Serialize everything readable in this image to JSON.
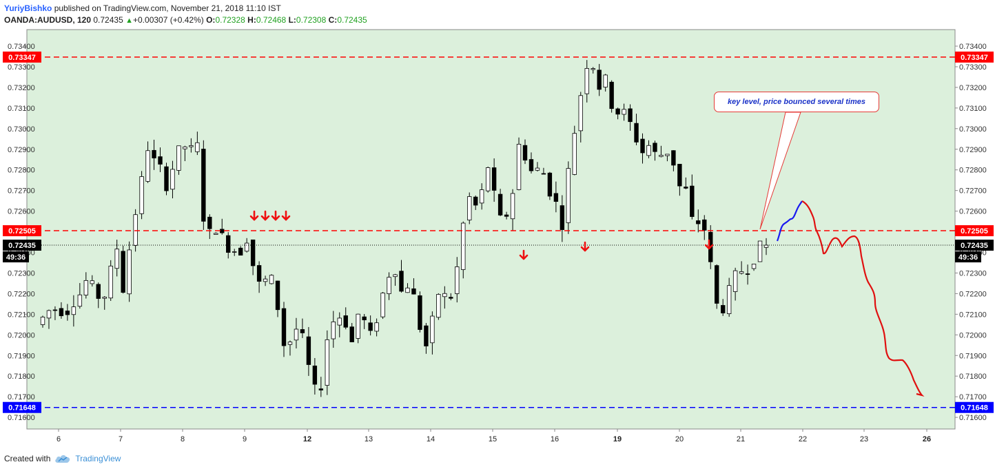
{
  "header": {
    "author": "YuriyBishko",
    "published_text": "published on TradingView.com, November 21, 2018 11:10 IST",
    "symbol": "OANDA:AUDUSD, 120",
    "last": "0.72435",
    "change_icon": "triangle-up-icon",
    "change": "+0.00307 (+0.42%)",
    "o_label": "O:",
    "o_value": "0.72328",
    "h_label": "H:",
    "h_value": "0.72468",
    "l_label": "L:",
    "l_value": "0.72308",
    "c_label": "C:",
    "c_value": "0.72435"
  },
  "footer": {
    "created_with": "Created with",
    "brand": "TradingView",
    "brand_icon": "tradingview-cloud-icon"
  },
  "annotation": {
    "text": "key level, price bounced several times"
  },
  "colors": {
    "background": "#dcf0dc",
    "resistance": "#ff0000",
    "support": "#0000ff",
    "bull_candle": "#ffffff",
    "bear_candle": "#000000",
    "projection_up": "#0000ff",
    "projection_down": "#ff0000"
  },
  "chart_data": {
    "type": "candlestick",
    "y_range": [
      0.7152,
      0.7346
    ],
    "y_ticks": [
      "0.73400",
      "0.73300",
      "0.73200",
      "0.73100",
      "0.73000",
      "0.72900",
      "0.72800",
      "0.72700",
      "0.72600",
      "0.72500",
      "0.72400",
      "0.72300",
      "0.72200",
      "0.72100",
      "0.72000",
      "0.71900",
      "0.71800",
      "0.71700",
      "0.71600"
    ],
    "x_ticks": [
      {
        "label": "6",
        "bold": false
      },
      {
        "label": "7",
        "bold": false
      },
      {
        "label": "8",
        "bold": false
      },
      {
        "label": "9",
        "bold": false
      },
      {
        "label": "12",
        "bold": true
      },
      {
        "label": "13",
        "bold": false
      },
      {
        "label": "14",
        "bold": false
      },
      {
        "label": "15",
        "bold": false
      },
      {
        "label": "16",
        "bold": false
      },
      {
        "label": "19",
        "bold": true
      },
      {
        "label": "20",
        "bold": false
      },
      {
        "label": "21",
        "bold": false
      },
      {
        "label": "22",
        "bold": false
      },
      {
        "label": "23",
        "bold": false
      },
      {
        "label": "26",
        "bold": true
      }
    ],
    "levels": [
      {
        "label": "0.73347",
        "value": 0.73347,
        "color": "#ff0000"
      },
      {
        "label": "0.72505",
        "value": 0.72505,
        "color": "#ff0000"
      },
      {
        "label": "0.71648",
        "value": 0.71648,
        "color": "#0000ff"
      }
    ],
    "current_price": {
      "label": "0.72435",
      "value": 0.72435,
      "countdown": "49:36"
    },
    "waypoints": [
      [
        0,
        0.7205
      ],
      [
        4,
        0.7213
      ],
      [
        8,
        0.721
      ],
      [
        12,
        0.722
      ],
      [
        14,
        0.7228
      ],
      [
        16,
        0.7222
      ],
      [
        18,
        0.7214
      ],
      [
        20,
        0.723
      ],
      [
        22,
        0.7242
      ],
      [
        24,
        0.7218
      ],
      [
        26,
        0.7252
      ],
      [
        28,
        0.7265
      ],
      [
        30,
        0.7292
      ],
      [
        32,
        0.7285
      ],
      [
        34,
        0.7281
      ],
      [
        36,
        0.7269
      ],
      [
        38,
        0.7288
      ],
      [
        40,
        0.7292
      ],
      [
        42,
        0.729
      ],
      [
        44,
        0.7292
      ],
      [
        46,
        0.725
      ],
      [
        48,
        0.725
      ],
      [
        50,
        0.7252
      ],
      [
        52,
        0.7242
      ],
      [
        56,
        0.724
      ],
      [
        58,
        0.7248
      ],
      [
        60,
        0.7225
      ],
      [
        62,
        0.7225
      ],
      [
        64,
        0.723
      ],
      [
        66,
        0.7213
      ],
      [
        68,
        0.7192
      ],
      [
        72,
        0.7206
      ],
      [
        74,
        0.7188
      ],
      [
        76,
        0.7174
      ],
      [
        78,
        0.7175
      ],
      [
        80,
        0.7205
      ],
      [
        84,
        0.721
      ],
      [
        86,
        0.7194
      ],
      [
        88,
        0.721
      ],
      [
        90,
        0.7206
      ],
      [
        92,
        0.7198
      ],
      [
        94,
        0.7215
      ],
      [
        96,
        0.7228
      ],
      [
        98,
        0.7232
      ],
      [
        100,
        0.722
      ],
      [
        102,
        0.7225
      ],
      [
        104,
        0.7215
      ],
      [
        106,
        0.719
      ],
      [
        110,
        0.722
      ],
      [
        114,
        0.7218
      ],
      [
        116,
        0.7245
      ],
      [
        118,
        0.7268
      ],
      [
        120,
        0.7262
      ],
      [
        122,
        0.727
      ],
      [
        124,
        0.7285
      ],
      [
        126,
        0.7258
      ],
      [
        128,
        0.7255
      ],
      [
        130,
        0.7265
      ],
      [
        132,
        0.7292
      ],
      [
        134,
        0.7285
      ],
      [
        136,
        0.7277
      ],
      [
        138,
        0.7283
      ],
      [
        140,
        0.727
      ],
      [
        142,
        0.7265
      ],
      [
        144,
        0.7252
      ],
      [
        146,
        0.7288
      ],
      [
        148,
        0.7305
      ],
      [
        150,
        0.733
      ],
      [
        152,
        0.7332
      ],
      [
        154,
        0.732
      ],
      [
        156,
        0.7325
      ],
      [
        158,
        0.7305
      ],
      [
        160,
        0.731
      ],
      [
        162,
        0.7305
      ],
      [
        164,
        0.7295
      ],
      [
        166,
        0.7288
      ],
      [
        168,
        0.7293
      ],
      [
        170,
        0.7285
      ],
      [
        172,
        0.729
      ],
      [
        174,
        0.7285
      ],
      [
        176,
        0.7272
      ],
      [
        178,
        0.727
      ],
      [
        180,
        0.725
      ],
      [
        182,
        0.7258
      ],
      [
        184,
        0.724
      ],
      [
        186,
        0.7215
      ],
      [
        188,
        0.7212
      ],
      [
        190,
        0.7225
      ],
      [
        192,
        0.7232
      ],
      [
        194,
        0.723
      ],
      [
        196,
        0.7235
      ],
      [
        198,
        0.72435
      ]
    ],
    "candles_count": 118,
    "signal_arrows": [
      {
        "x": 369,
        "value": 0.72575
      },
      {
        "x": 385,
        "value": 0.72575
      },
      {
        "x": 400,
        "value": 0.72575
      },
      {
        "x": 415,
        "value": 0.72575
      },
      {
        "x": 760,
        "value": 0.72385
      },
      {
        "x": 849,
        "value": 0.72425
      },
      {
        "x": 1029,
        "value": 0.72435
      }
    ]
  }
}
